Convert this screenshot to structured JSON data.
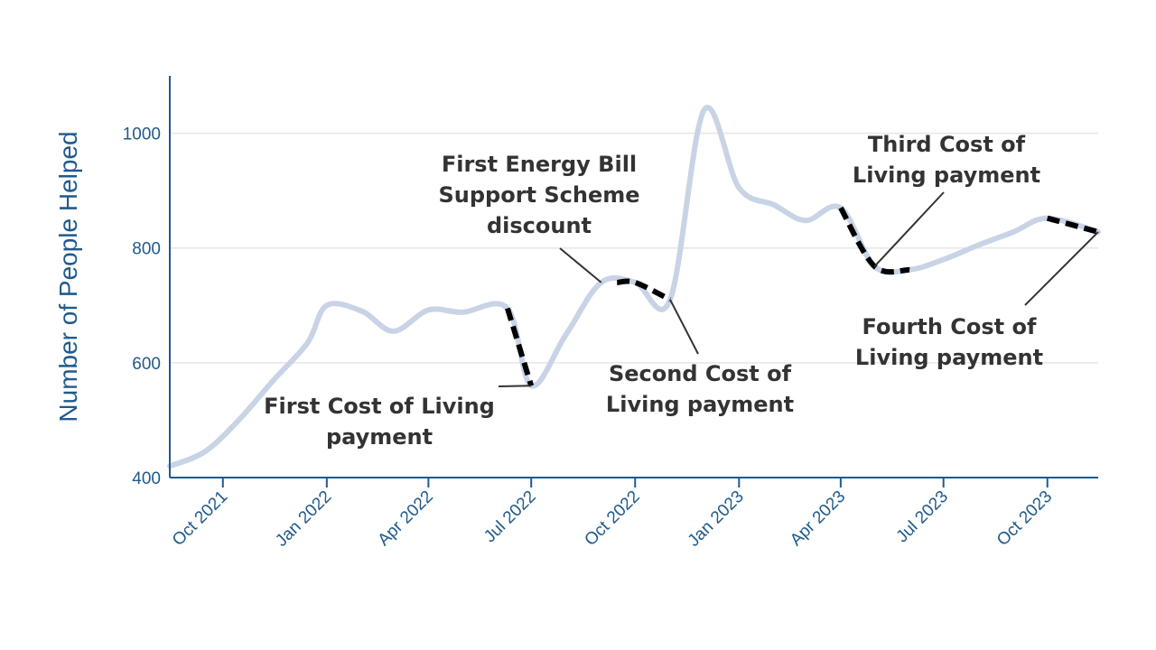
{
  "chart_data": {
    "type": "line",
    "title": "",
    "xlabel": "",
    "ylabel": "Number of People Helped",
    "ylim": [
      400,
      1100
    ],
    "xlim": [
      "2021-08-15",
      "2023-11-15"
    ],
    "yticks": [
      400,
      600,
      800,
      1000
    ],
    "xticks": [
      {
        "date": "2021-10-01",
        "label": "Oct 2021"
      },
      {
        "date": "2022-01-01",
        "label": "Jan 2022"
      },
      {
        "date": "2022-04-01",
        "label": "Apr 2022"
      },
      {
        "date": "2022-07-01",
        "label": "Jul 2022"
      },
      {
        "date": "2022-10-01",
        "label": "Oct 2022"
      },
      {
        "date": "2023-01-01",
        "label": "Jan 2023"
      },
      {
        "date": "2023-04-01",
        "label": "Apr 2023"
      },
      {
        "date": "2023-07-01",
        "label": "Jul 2023"
      },
      {
        "date": "2023-10-01",
        "label": "Oct 2023"
      }
    ],
    "grid": true,
    "colors": {
      "line": "#c8d3e6",
      "highlight": "#000000",
      "axis": "#1f5a8c",
      "grid": "#e6e6e6",
      "annotation": "#333333"
    },
    "series": [
      {
        "points": [
          {
            "x": "2021-08-15",
            "y": 420
          },
          {
            "x": "2021-09-15",
            "y": 445
          },
          {
            "x": "2021-10-15",
            "y": 500
          },
          {
            "x": "2021-11-15",
            "y": 570
          },
          {
            "x": "2021-12-15",
            "y": 635
          },
          {
            "x": "2022-01-01",
            "y": 700
          },
          {
            "x": "2022-02-01",
            "y": 690
          },
          {
            "x": "2022-03-01",
            "y": 655
          },
          {
            "x": "2022-04-01",
            "y": 692
          },
          {
            "x": "2022-05-01",
            "y": 688
          },
          {
            "x": "2022-06-10",
            "y": 695
          },
          {
            "x": "2022-07-01",
            "y": 560
          },
          {
            "x": "2022-08-01",
            "y": 650
          },
          {
            "x": "2022-09-01",
            "y": 740
          },
          {
            "x": "2022-10-01",
            "y": 740
          },
          {
            "x": "2022-11-01",
            "y": 710
          },
          {
            "x": "2022-12-01",
            "y": 1040
          },
          {
            "x": "2023-01-01",
            "y": 905
          },
          {
            "x": "2023-02-01",
            "y": 875
          },
          {
            "x": "2023-03-01",
            "y": 848
          },
          {
            "x": "2023-04-01",
            "y": 870
          },
          {
            "x": "2023-05-01",
            "y": 768
          },
          {
            "x": "2023-06-01",
            "y": 762
          },
          {
            "x": "2023-07-01",
            "y": 780
          },
          {
            "x": "2023-08-01",
            "y": 805
          },
          {
            "x": "2023-09-01",
            "y": 828
          },
          {
            "x": "2023-10-01",
            "y": 852
          },
          {
            "x": "2023-11-15",
            "y": 828
          }
        ]
      }
    ],
    "highlights": [
      {
        "from": "2022-06-10",
        "to": "2022-07-01",
        "label": "First Cost of Living payment"
      },
      {
        "from": "2022-09-15",
        "to": "2022-11-01",
        "label": "First Energy Bill Support Scheme discount"
      },
      {
        "from": "2022-09-15",
        "to": "2022-11-01",
        "label": "Second Cost of Living payment"
      },
      {
        "from": "2023-04-01",
        "to": "2023-06-01",
        "label": "Third Cost of Living payment"
      },
      {
        "from": "2023-10-01",
        "to": "2023-11-15",
        "label": "Fourth Cost of Living payment"
      }
    ],
    "annotations": [
      {
        "id": "first-col",
        "lines": [
          "First Cost of Living",
          "payment"
        ],
        "target": {
          "x": "2022-07-01",
          "y": 560
        }
      },
      {
        "id": "first-ebss",
        "lines": [
          "First Energy Bill",
          "Support Scheme",
          "discount"
        ],
        "target": {
          "x": "2022-09-01",
          "y": 740
        }
      },
      {
        "id": "second-col",
        "lines": [
          "Second Cost of",
          "Living payment"
        ],
        "target": {
          "x": "2022-11-01",
          "y": 710
        }
      },
      {
        "id": "third-col",
        "lines": [
          "Third Cost of",
          "Living payment"
        ],
        "target": {
          "x": "2023-05-01",
          "y": 768
        }
      },
      {
        "id": "fourth-col",
        "lines": [
          "Fourth Cost of",
          "Living payment"
        ],
        "target": {
          "x": "2023-11-15",
          "y": 828
        }
      }
    ]
  }
}
